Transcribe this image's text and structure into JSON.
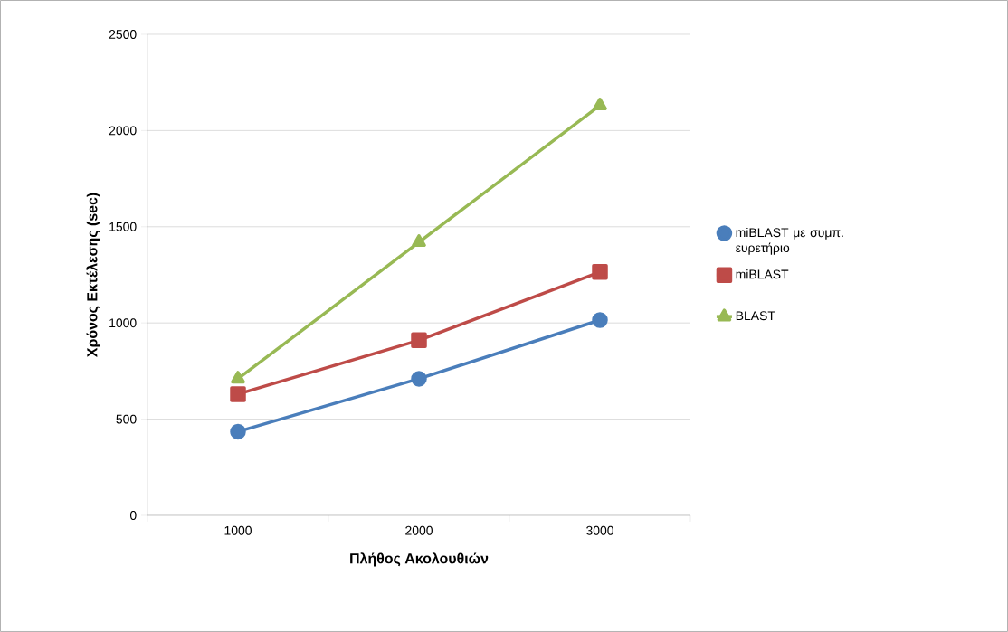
{
  "chart_data": {
    "type": "line",
    "xlabel": "Πλήθος Ακολουθιών",
    "ylabel": "Χρόνος  Εκτέλεσης (sec)",
    "categories": [
      "1000",
      "2000",
      "3000"
    ],
    "series": [
      {
        "name": "miBLAST με συμπ. ευρετήριο",
        "color": "#4a7ebb",
        "marker": "circle",
        "values": [
          435,
          710,
          1015
        ]
      },
      {
        "name": "miBLAST",
        "color": "#be4b48",
        "marker": "square",
        "values": [
          630,
          910,
          1265
        ]
      },
      {
        "name": "BLAST",
        "color": "#98b954",
        "marker": "triangle",
        "values": [
          710,
          1420,
          2130
        ]
      }
    ],
    "ylim": [
      0,
      2500
    ],
    "yticks": [
      0,
      500,
      1000,
      1500,
      2000,
      2500
    ],
    "grid": "y",
    "legend": "right"
  }
}
